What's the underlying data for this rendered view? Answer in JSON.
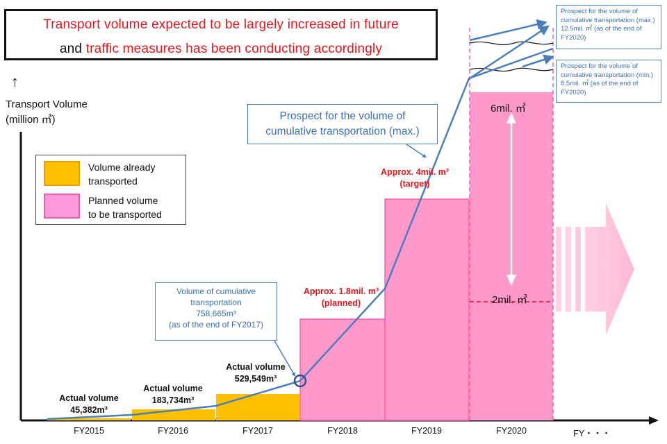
{
  "header": {
    "line1": "Transport volume expected to be largely increased in future",
    "line2_black": "and ",
    "line2_red": "traffic measures has been conducting accordingly"
  },
  "axis": {
    "ylabel_line1": "Transport Volume",
    "ylabel_line2": "(million ㎥)"
  },
  "legend": {
    "item1": [
      "Volume already",
      "transported"
    ],
    "item2": [
      "Planned volume",
      "to be transported"
    ]
  },
  "colors": {
    "transported": "#ffc000",
    "planned": "#ff99dd",
    "line": "#4a7ebb",
    "red_text": "#e8141b"
  },
  "callouts": {
    "max_prospect": [
      "Prospect for the volume of",
      "cumulative transportation (max.)"
    ],
    "cumulative_fy2017": [
      "Volume of cumulative",
      "transportation",
      "758,665m³",
      "(as of the end of FY2017)"
    ],
    "right_max": "Prospect for the volume of cumulative transportation (max.)  12.5mil. ㎥ (as of the end of FY2020)",
    "right_min": "Prospect for the volume of cumulative transportation (min.)  8.5mil. ㎥ (as of the end of FY2020)"
  },
  "bar_labels": {
    "fy2015": [
      "Actual volume",
      "45,382m³"
    ],
    "fy2016": [
      "Actual volume",
      "183,734m³"
    ],
    "fy2017": [
      "Actual volume",
      "529,549m³"
    ],
    "fy2018": [
      "Approx. 1.8mil. m³",
      "(planned)"
    ],
    "fy2019": [
      "Approx. 4mil. m³",
      "(target)"
    ],
    "fy2020_top": "6mil. ㎥",
    "fy2020_bottom": "2mil. ㎥"
  },
  "chart_data": {
    "type": "bar",
    "categories": [
      "FY2015",
      "FY2016",
      "FY2017",
      "FY2018",
      "FY2019",
      "FY2020",
      "FY・・・"
    ],
    "series": [
      {
        "name": "Volume already transported",
        "values": [
          45382,
          183734,
          529549,
          null,
          null,
          null,
          null
        ]
      },
      {
        "name": "Planned volume to be transported",
        "values": [
          null,
          null,
          null,
          1800000,
          4000000,
          [
            2000000,
            6000000
          ],
          null
        ]
      }
    ],
    "cumulative_line_max": [
      {
        "x": "FY2015",
        "y": 45382
      },
      {
        "x": "FY2016",
        "y": 229116
      },
      {
        "x": "FY2017",
        "y": 758665
      },
      {
        "x": "FY2018",
        "y": 2500000
      },
      {
        "x": "FY2019",
        "y": 6500000
      },
      {
        "x": "FY2020",
        "y": 12500000
      }
    ],
    "cumulative_min_end_FY2020": 8500000,
    "ylabel": "Transport Volume (million ㎥)",
    "grid": false,
    "legend_position": "top-left"
  }
}
